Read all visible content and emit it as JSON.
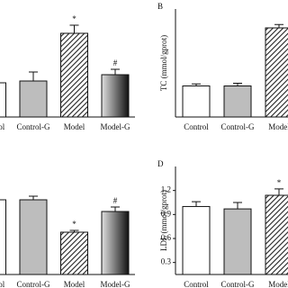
{
  "chart_data": [
    {
      "type": "bar",
      "categories": [
        "Control",
        "Control-G",
        "Model",
        "Model-G"
      ],
      "values": [
        3.8,
        4.0,
        9.3,
        4.7
      ],
      "errors": [
        0.3,
        1.0,
        0.9,
        0.6
      ],
      "colors": [
        "#ffffff",
        "#bdbdbd",
        "hatch",
        "gradient"
      ],
      "ylim": [
        0,
        12
      ],
      "annotations": [
        {
          "index": 2,
          "text": "*"
        },
        {
          "index": 3,
          "text": "#"
        }
      ]
    },
    {
      "type": "bar",
      "title": "B",
      "ylabel": "TC (mmol/gprot)",
      "categories": [
        "Control",
        "Control-G",
        "Model"
      ],
      "values": [
        2.3,
        2.3,
        6.6
      ],
      "errors": [
        0.15,
        0.2,
        0.25
      ],
      "colors": [
        "#ffffff",
        "#bdbdbd",
        "hatch"
      ],
      "ylim": [
        0,
        8
      ]
    },
    {
      "type": "bar",
      "categories": [
        "Control",
        "Control-G",
        "Model",
        "Model-G"
      ],
      "values": [
        0.83,
        0.83,
        0.47,
        0.7
      ],
      "errors": [
        0.04,
        0.04,
        0.02,
        0.05
      ],
      "colors": [
        "#ffffff",
        "#bdbdbd",
        "hatch",
        "gradient"
      ],
      "ylim": [
        0,
        1.2
      ],
      "annotations": [
        {
          "index": 2,
          "text": "*"
        },
        {
          "index": 3,
          "text": "#"
        }
      ]
    },
    {
      "type": "bar",
      "title": "D",
      "ylabel": "LDL (mmol/gprot)",
      "categories": [
        "Control",
        "Control-G",
        "Model"
      ],
      "values": [
        1.0,
        0.97,
        1.14
      ],
      "errors": [
        0.06,
        0.08,
        0.08
      ],
      "colors": [
        "#ffffff",
        "#bdbdbd",
        "hatch"
      ],
      "ylim": [
        0.15,
        1.5
      ],
      "yticks": [
        0.3,
        0.6,
        0.9,
        1.2
      ],
      "annotations": [
        {
          "index": 2,
          "text": "*"
        }
      ]
    }
  ]
}
